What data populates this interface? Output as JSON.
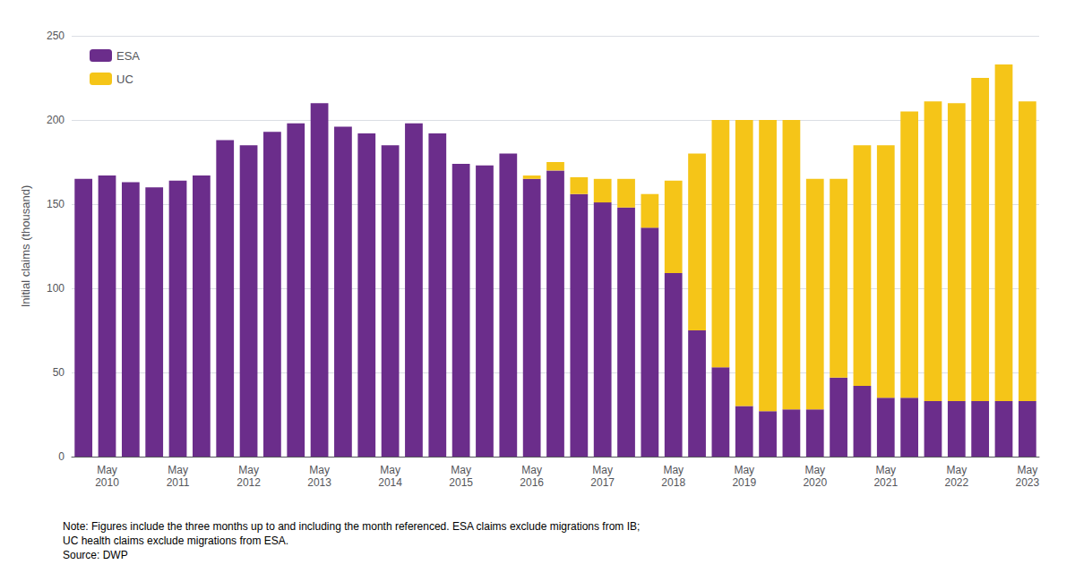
{
  "chart_data": {
    "type": "bar",
    "stacked": true,
    "ylabel": "Initial claims (thousand)",
    "ylim": [
      0,
      250
    ],
    "yticks": [
      0,
      50,
      100,
      150,
      200,
      250
    ],
    "grid": true,
    "legend": "upper left",
    "annotations": [
      "Note: Figures include the three months up to and including the month referenced. ESA claims exclude migrations from IB;",
      "UC health claims exclude migrations from ESA.",
      "Source: DWP"
    ],
    "categories": [
      null,
      "May\n2010",
      null,
      null,
      "May\n2011",
      null,
      null,
      "May\n2012",
      null,
      null,
      "May\n2013",
      null,
      null,
      "May\n2014",
      null,
      null,
      "May\n2015",
      null,
      null,
      "May\n2016",
      null,
      null,
      "May\n2017",
      null,
      null,
      "May\n2018",
      null,
      null,
      "May\n2019",
      null,
      null,
      "May\n2020",
      null,
      null,
      "May\n2021",
      null,
      null,
      "May\n2022",
      null,
      null,
      "May\n2023"
    ],
    "series": [
      {
        "name": "ESA",
        "color": "#6B2D8B",
        "values": [
          165,
          167,
          163,
          160,
          164,
          167,
          188,
          185,
          193,
          198,
          210,
          196,
          192,
          185,
          198,
          192,
          174,
          173,
          180,
          165,
          170,
          156,
          151,
          148,
          136,
          109,
          75,
          53,
          30,
          27,
          28,
          28,
          47,
          42,
          35,
          35,
          33,
          33,
          33,
          33,
          33
        ]
      },
      {
        "name": "UC",
        "color": "#F5C518",
        "values": [
          0,
          0,
          0,
          0,
          0,
          0,
          0,
          0,
          0,
          0,
          0,
          0,
          0,
          0,
          0,
          0,
          0,
          0,
          0,
          2,
          5,
          10,
          14,
          17,
          20,
          55,
          105,
          147,
          170,
          173,
          172,
          137,
          118,
          143,
          150,
          170,
          178,
          177,
          192,
          200,
          178
        ]
      }
    ]
  }
}
